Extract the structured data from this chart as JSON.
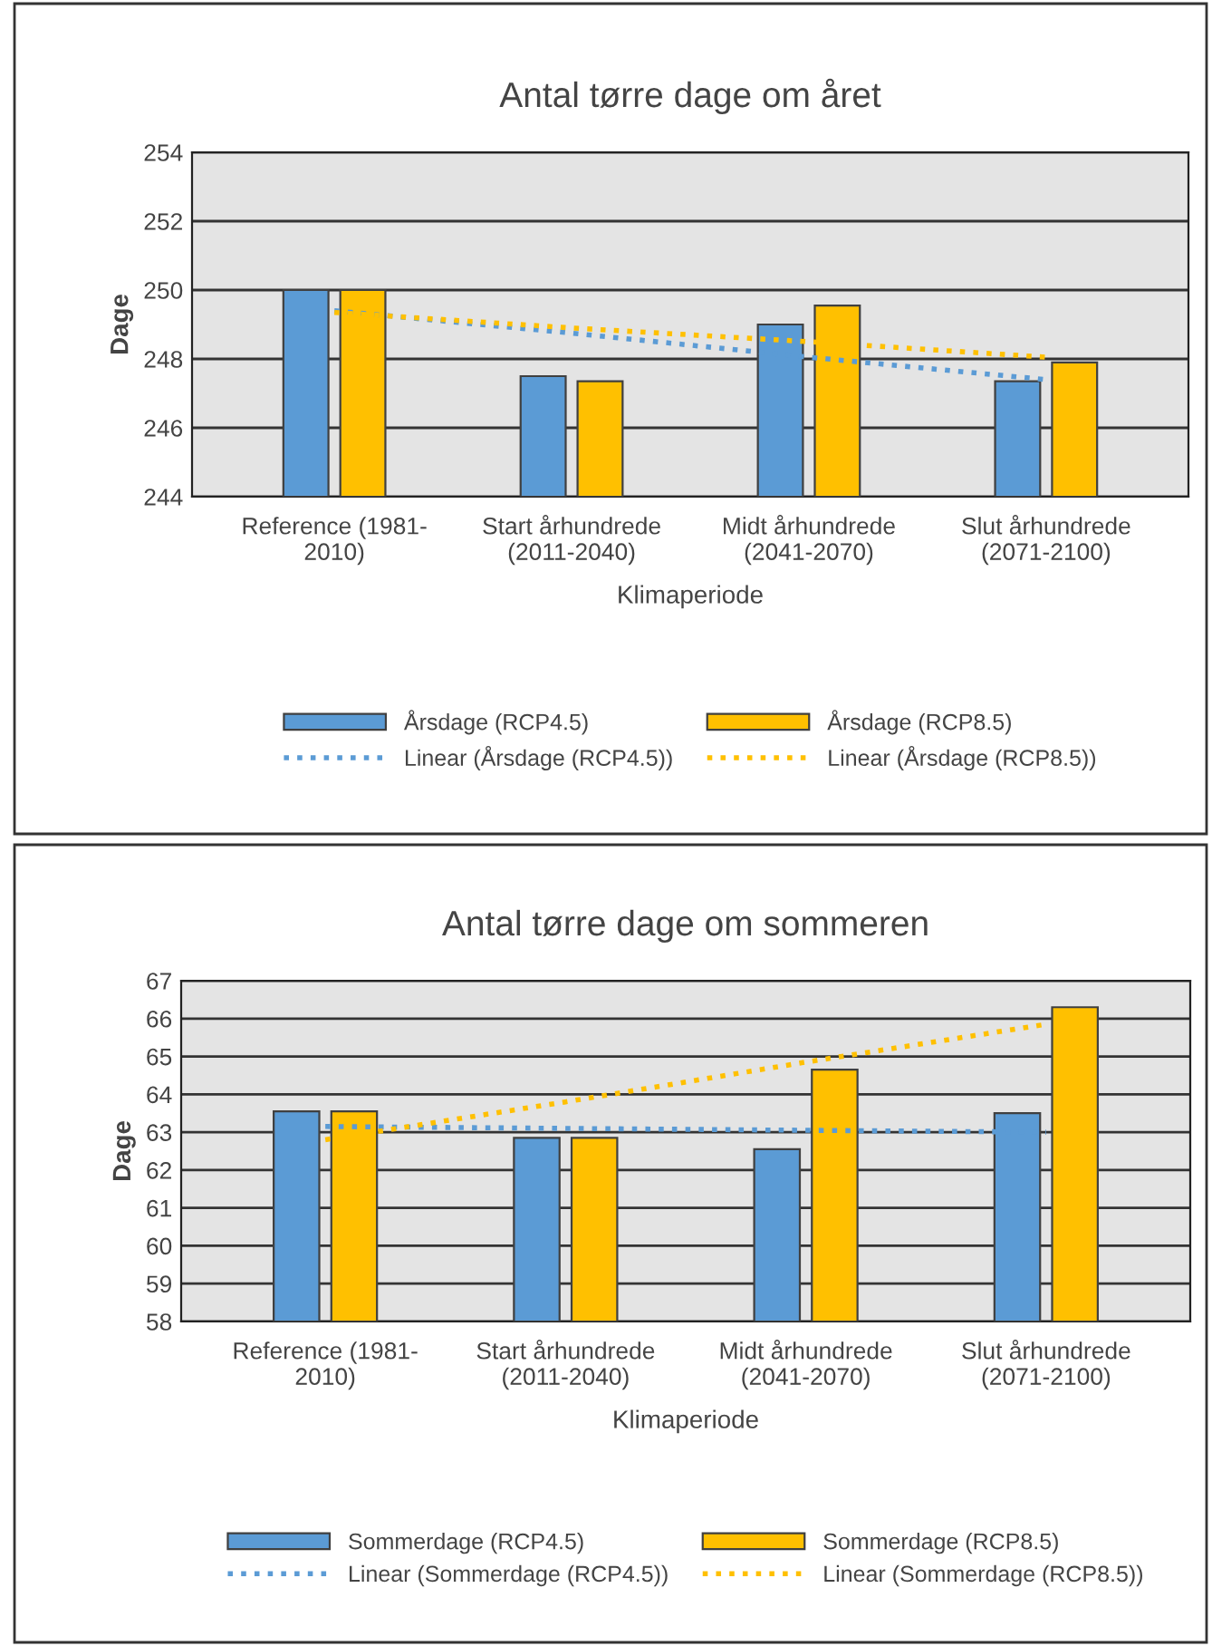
{
  "chart_data": [
    {
      "type": "bar",
      "title": "Antal tørre dage om året",
      "xlabel": "Klimaperiode",
      "ylabel": "Dage",
      "categories": [
        "Reference (1981-\n2010)",
        "Start århundrede\n(2011-2040)",
        "Midt århundrede\n(2041-2070)",
        "Slut århundrede\n(2071-2100)"
      ],
      "series": [
        {
          "name": "Årsdage (RCP4.5)",
          "color": "#5b9bd5",
          "values": [
            250.0,
            247.5,
            249.0,
            247.35
          ]
        },
        {
          "name": "Årsdage (RCP8.5)",
          "color": "#ffc000",
          "values": [
            250.0,
            247.35,
            249.55,
            247.9
          ]
        },
        {
          "name": "Linear (Årsdage (RCP4.5))",
          "type": "line",
          "line_style": "dotted",
          "color": "#5b9bd5",
          "values": [
            249.4,
            248.75,
            248.05,
            247.4
          ]
        },
        {
          "name": "Linear (Årsdage (RCP8.5))",
          "type": "line",
          "line_style": "dotted",
          "color": "#ffc000",
          "values": [
            249.35,
            248.9,
            248.5,
            248.05
          ]
        }
      ],
      "ylim": [
        244,
        254
      ],
      "yticks": [
        244,
        246,
        248,
        250,
        252,
        254
      ],
      "grid": "y",
      "legend": "bottom"
    },
    {
      "type": "bar",
      "title": "Antal tørre dage om sommeren",
      "xlabel": "Klimaperiode",
      "ylabel": "Dage",
      "categories": [
        "Reference (1981-\n2010)",
        "Start århundrede\n(2011-2040)",
        "Midt århundrede\n(2041-2070)",
        "Slut århundrede\n(2071-2100)"
      ],
      "series": [
        {
          "name": "Sommerdage (RCP4.5)",
          "color": "#5b9bd5",
          "values": [
            63.55,
            62.85,
            62.55,
            63.5
          ]
        },
        {
          "name": "Sommerdage (RCP8.5)",
          "color": "#ffc000",
          "values": [
            63.55,
            62.85,
            64.65,
            66.3
          ]
        },
        {
          "name": "Linear (Sommerdage (RCP4.5))",
          "type": "line",
          "line_style": "dotted",
          "color": "#5b9bd5",
          "values": [
            63.15,
            63.1,
            63.05,
            63.0
          ]
        },
        {
          "name": "Linear (Sommerdage (RCP8.5))",
          "type": "line",
          "line_style": "dotted",
          "color": "#ffc000",
          "values": [
            62.8,
            63.8,
            64.85,
            65.85
          ]
        }
      ],
      "ylim": [
        58,
        67
      ],
      "yticks": [
        58,
        59,
        60,
        61,
        62,
        63,
        64,
        65,
        66,
        67
      ],
      "grid": "y",
      "legend": "bottom"
    }
  ]
}
